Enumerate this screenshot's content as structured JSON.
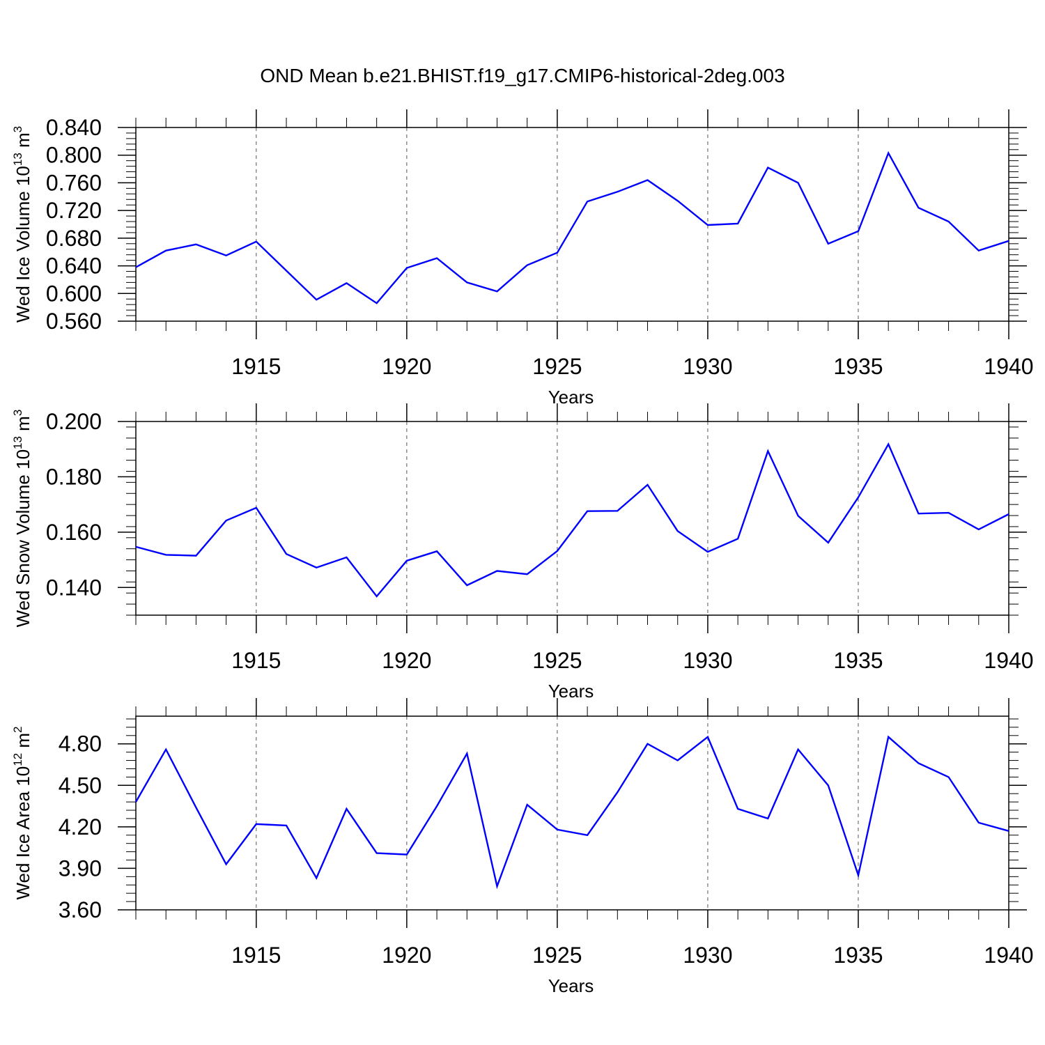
{
  "chart_data": {
    "title": "OND Mean b.e21.BHIST.f19_g17.CMIP6-historical-2deg.003",
    "years": [
      1911,
      1912,
      1913,
      1914,
      1915,
      1916,
      1917,
      1918,
      1919,
      1920,
      1921,
      1922,
      1923,
      1924,
      1925,
      1926,
      1927,
      1928,
      1929,
      1930,
      1931,
      1932,
      1933,
      1934,
      1935,
      1936,
      1937,
      1938,
      1939,
      1940
    ],
    "xlim": [
      1911,
      1940
    ],
    "xticks": [
      1915,
      1920,
      1925,
      1930,
      1935,
      1940
    ],
    "grid": "dashed vertical at major x ticks",
    "panels": [
      {
        "type": "line",
        "ylabel_text": "Wed Ice Volume 10",
        "ylabel_exp": "13",
        "ylabel_unit": " m",
        "ylabel_unit_exp": "3",
        "xlabel": "Years",
        "ylim": [
          0.56,
          0.84
        ],
        "yticks": [
          "0.840",
          "0.800",
          "0.760",
          "0.720",
          "0.680",
          "0.640",
          "0.600",
          "0.560"
        ],
        "ytick_values": [
          0.84,
          0.8,
          0.76,
          0.72,
          0.68,
          0.64,
          0.6,
          0.56
        ],
        "yminor": 0.008,
        "series": [
          {
            "name": "Wed Ice Volume",
            "color": "#0000ff",
            "values": [
              0.638,
              0.662,
              0.671,
              0.655,
              0.675,
              0.633,
              0.591,
              0.615,
              0.586,
              0.637,
              0.651,
              0.616,
              0.603,
              0.641,
              0.659,
              0.733,
              0.747,
              0.764,
              0.734,
              0.699,
              0.701,
              0.782,
              0.76,
              0.672,
              0.69,
              0.803,
              0.724,
              0.704,
              0.662,
              0.676
            ]
          }
        ]
      },
      {
        "type": "line",
        "ylabel_text": "Wed Snow Volume 10",
        "ylabel_exp": "13",
        "ylabel_unit": " m",
        "ylabel_unit_exp": "3",
        "xlabel": "Years",
        "ylim": [
          0.13,
          0.2
        ],
        "yticks": [
          "0.200",
          "0.180",
          "0.160",
          "0.140"
        ],
        "ytick_values": [
          0.2,
          0.18,
          0.16,
          0.14
        ],
        "yminor": 0.004,
        "series": [
          {
            "name": "Wed Snow Volume",
            "color": "#0000ff",
            "values": [
              0.1547,
              0.1518,
              0.1515,
              0.1642,
              0.1688,
              0.1521,
              0.1472,
              0.1509,
              0.1368,
              0.1497,
              0.1531,
              0.1408,
              0.146,
              0.1448,
              0.1532,
              0.1676,
              0.1677,
              0.1771,
              0.1604,
              0.1529,
              0.1576,
              0.1893,
              0.1659,
              0.1562,
              0.1726,
              0.1918,
              0.1667,
              0.167,
              0.161,
              0.1665
            ]
          }
        ]
      },
      {
        "type": "line",
        "ylabel_text": "Wed Ice Area 10",
        "ylabel_exp": "12",
        "ylabel_unit": " m",
        "ylabel_unit_exp": "2",
        "xlabel": "Years",
        "ylim": [
          3.6,
          5.0
        ],
        "yticks": [
          "4.80",
          "4.50",
          "4.20",
          "3.90",
          "3.60"
        ],
        "ytick_values": [
          4.8,
          4.5,
          4.2,
          3.9,
          3.6
        ],
        "yminor": 0.06,
        "series": [
          {
            "name": "Wed Ice Area",
            "color": "#0000ff",
            "values": [
              4.38,
              4.76,
              4.34,
              3.93,
              4.22,
              4.21,
              3.83,
              4.33,
              4.01,
              4.0,
              4.35,
              4.73,
              3.77,
              4.36,
              4.18,
              4.14,
              4.45,
              4.8,
              4.68,
              4.85,
              4.33,
              4.26,
              4.76,
              4.5,
              3.85,
              4.85,
              4.66,
              4.56,
              4.23,
              4.17
            ]
          }
        ]
      }
    ]
  }
}
